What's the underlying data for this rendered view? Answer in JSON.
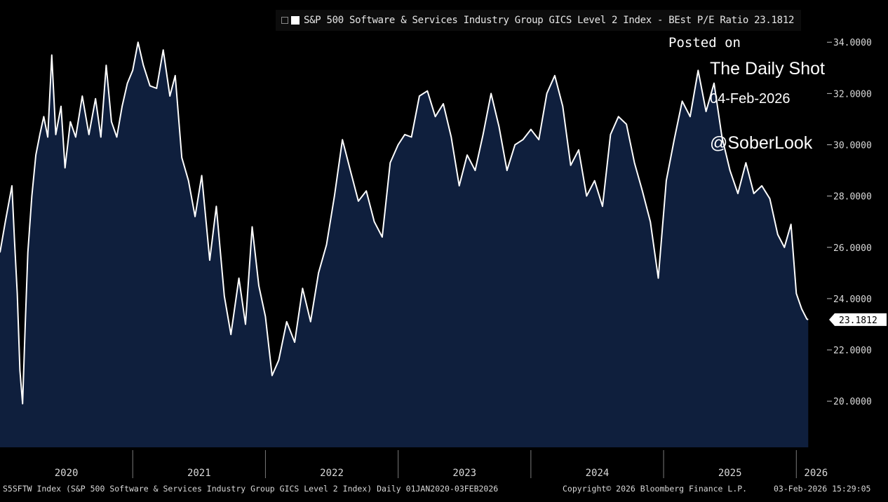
{
  "legend": {
    "text": "S&P 500 Software & Services Industry Group GICS Level 2 Index - BEst P/E Ratio 23.1812"
  },
  "watermark": {
    "line1": "Posted on",
    "line2": "The Daily Shot",
    "line3": "04-Feb-2026",
    "line4": "@SoberLook"
  },
  "footer": {
    "left": "S5SFTW Index (S&P 500 Software & Services Industry Group GICS Level 2 Index) Daily 01JAN2020-03FEB2026",
    "middle": "Copyright© 2026 Bloomberg Finance L.P.",
    "right": "03-Feb-2026 15:29:05"
  },
  "colors": {
    "background": "#000000",
    "area_fill": "#0f1f3d",
    "line": "#ffffff",
    "axis_text": "#d9d9d9",
    "last_label_bg": "#ffffff",
    "last_label_text": "#000000"
  },
  "chart_data": {
    "type": "area",
    "title": "S&P 500 Software & Services Industry Group GICS Level 2 Index - BEst P/E Ratio",
    "xlabel": "",
    "ylabel": "",
    "ylim": [
      18.2,
      35.1
    ],
    "xlim": [
      2020.0,
      2026.12
    ],
    "y_ticks": [
      20,
      22,
      24,
      26,
      28,
      30,
      32,
      34
    ],
    "y_tick_labels": [
      "20.0000",
      "22.0000",
      "24.0000",
      "26.0000",
      "28.0000",
      "30.0000",
      "32.0000",
      "34.0000"
    ],
    "x_year_labels": [
      "2020",
      "2021",
      "2022",
      "2023",
      "2024",
      "2025",
      "2026"
    ],
    "x_year_starts": [
      2020,
      2021,
      2022,
      2023,
      2024,
      2025,
      2026
    ],
    "grid": false,
    "last_value": 23.1812,
    "last_value_label": "23.1812",
    "series": [
      {
        "name": "BEst P/E Ratio",
        "x": [
          2020.0,
          2020.04,
          2020.09,
          2020.11,
          2020.13,
          2020.15,
          2020.17,
          2020.19,
          2020.21,
          2020.24,
          2020.27,
          2020.3,
          2020.33,
          2020.36,
          2020.39,
          2020.42,
          2020.46,
          2020.49,
          2020.53,
          2020.57,
          2020.62,
          2020.67,
          2020.72,
          2020.76,
          2020.8,
          2020.84,
          2020.88,
          2020.92,
          2020.96,
          2021.0,
          2021.04,
          2021.08,
          2021.13,
          2021.18,
          2021.23,
          2021.28,
          2021.32,
          2021.37,
          2021.42,
          2021.47,
          2021.52,
          2021.58,
          2021.63,
          2021.69,
          2021.74,
          2021.8,
          2021.85,
          2021.9,
          2021.95,
          2022.0,
          2022.05,
          2022.1,
          2022.16,
          2022.22,
          2022.28,
          2022.34,
          2022.4,
          2022.46,
          2022.52,
          2022.58,
          2022.64,
          2022.7,
          2022.76,
          2022.82,
          2022.88,
          2022.94,
          2023.0,
          2023.05,
          2023.1,
          2023.16,
          2023.22,
          2023.28,
          2023.34,
          2023.4,
          2023.46,
          2023.52,
          2023.58,
          2023.64,
          2023.7,
          2023.76,
          2023.82,
          2023.88,
          2023.94,
          2024.0,
          2024.06,
          2024.12,
          2024.18,
          2024.24,
          2024.3,
          2024.36,
          2024.42,
          2024.48,
          2024.54,
          2024.6,
          2024.66,
          2024.72,
          2024.78,
          2024.84,
          2024.9,
          2024.96,
          2025.02,
          2025.08,
          2025.14,
          2025.2,
          2025.26,
          2025.32,
          2025.38,
          2025.44,
          2025.5,
          2025.56,
          2025.62,
          2025.68,
          2025.74,
          2025.8,
          2025.86,
          2025.91,
          2025.96,
          2026.0,
          2026.02,
          2026.04,
          2026.06,
          2026.07,
          2026.08,
          2026.09
        ],
        "values": [
          25.8,
          27.0,
          28.4,
          26.2,
          24.2,
          21.2,
          19.9,
          23.0,
          25.8,
          28.0,
          29.6,
          30.4,
          31.1,
          30.3,
          33.5,
          30.4,
          31.5,
          29.1,
          30.9,
          30.3,
          31.9,
          30.4,
          31.8,
          30.3,
          33.1,
          30.9,
          30.3,
          31.5,
          32.4,
          32.9,
          34.0,
          33.1,
          32.3,
          32.2,
          33.7,
          31.9,
          32.7,
          29.5,
          28.6,
          27.2,
          28.8,
          25.5,
          27.6,
          24.1,
          22.6,
          24.8,
          23.0,
          26.8,
          24.5,
          23.3,
          21.0,
          21.6,
          23.1,
          22.3,
          24.4,
          23.1,
          25.0,
          26.1,
          28.0,
          30.2,
          29.0,
          27.8,
          28.2,
          27.0,
          26.4,
          29.3,
          30.0,
          30.4,
          30.3,
          31.9,
          32.1,
          31.1,
          31.6,
          30.3,
          28.4,
          29.6,
          29.0,
          30.4,
          32.0,
          30.7,
          29.0,
          30.0,
          30.2,
          30.6,
          30.2,
          32.0,
          32.7,
          31.5,
          29.2,
          29.8,
          28.0,
          28.6,
          27.6,
          30.4,
          31.1,
          30.8,
          29.3,
          28.2,
          27.0,
          24.8,
          28.6,
          30.2,
          31.7,
          31.1,
          32.9,
          31.3,
          32.4,
          30.3,
          29.0,
          28.1,
          29.3,
          28.1,
          28.4,
          27.9,
          26.5,
          26.0,
          26.9,
          24.2,
          23.9,
          23.6,
          23.4,
          23.3,
          23.2,
          23.1812
        ]
      }
    ]
  }
}
